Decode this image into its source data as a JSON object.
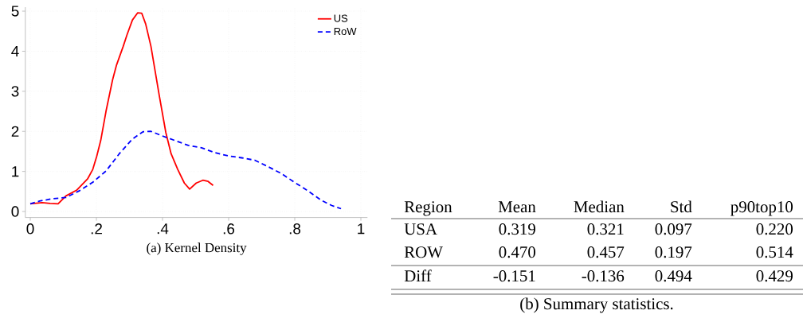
{
  "chart_data": [
    {
      "type": "line",
      "xlabel": "(a)  Kernel Density",
      "xlim": [
        -0.015,
        1.02
      ],
      "ylim": [
        -0.15,
        5.1
      ],
      "xticks": [
        0,
        {
          "value": 0.2,
          "label": ".2"
        },
        {
          "value": 0.4,
          "label": ".4"
        },
        {
          "value": 0.6,
          "label": ".6"
        },
        {
          "value": 0.8,
          "label": ".8"
        },
        1
      ],
      "yticks": [
        0,
        1,
        2,
        3,
        4,
        5
      ],
      "grid": true,
      "legend": "top right",
      "series": [
        {
          "name": "US",
          "color": "#ff0000",
          "line_style": "solid",
          "x": [
            0,
            0.036,
            0.06,
            0.084,
            0.108,
            0.14,
            0.173,
            0.189,
            0.201,
            0.213,
            0.229,
            0.249,
            0.261,
            0.281,
            0.293,
            0.309,
            0.325,
            0.337,
            0.349,
            0.365,
            0.39,
            0.41,
            0.426,
            0.446,
            0.466,
            0.482,
            0.502,
            0.522,
            0.538,
            0.553
          ],
          "values": [
            0.19,
            0.22,
            0.2,
            0.19,
            0.39,
            0.53,
            0.81,
            1.05,
            1.38,
            1.77,
            2.5,
            3.29,
            3.66,
            4.12,
            4.42,
            4.78,
            4.96,
            4.95,
            4.68,
            4.12,
            2.9,
            1.97,
            1.44,
            1.05,
            0.71,
            0.56,
            0.71,
            0.78,
            0.75,
            0.65
          ]
        },
        {
          "name": "RoW",
          "color": "#0000ff",
          "line_style": "dashed",
          "x": [
            0,
            0.028,
            0.068,
            0.108,
            0.149,
            0.189,
            0.229,
            0.269,
            0.309,
            0.341,
            0.365,
            0.398,
            0.438,
            0.478,
            0.518,
            0.558,
            0.598,
            0.639,
            0.679,
            0.719,
            0.759,
            0.799,
            0.839,
            0.88,
            0.912,
            0.94
          ],
          "values": [
            0.19,
            0.26,
            0.32,
            0.35,
            0.52,
            0.73,
            1.01,
            1.44,
            1.81,
            1.99,
            2.0,
            1.89,
            1.77,
            1.65,
            1.59,
            1.47,
            1.39,
            1.34,
            1.28,
            1.12,
            0.95,
            0.73,
            0.52,
            0.28,
            0.15,
            0.07
          ]
        }
      ]
    },
    {
      "type": "other",
      "title": "(b) Summary statistics.",
      "ylabel": "Region",
      "categories": [
        "Mean",
        "Median",
        "Std",
        "p90top10"
      ],
      "y_categories": [
        "USA",
        "ROW",
        "Diff"
      ],
      "cell_labels": [
        [
          "0.319",
          "0.321",
          "0.097",
          "0.220"
        ],
        [
          "0.470",
          "0.457",
          "0.197",
          "0.514"
        ],
        [
          "-0.151",
          "-0.136",
          "0.494",
          "0.429"
        ]
      ]
    }
  ]
}
